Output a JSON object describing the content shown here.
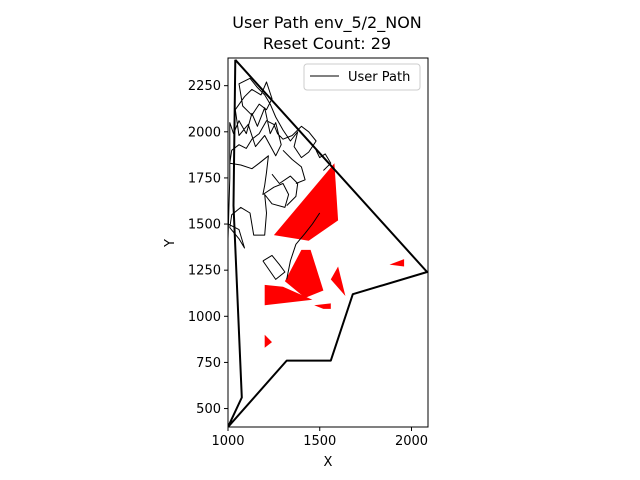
{
  "chart_data": {
    "type": "line",
    "title_line1": "User Path env_5/2_NON",
    "title_line2": "Reset Count: 29",
    "xlabel": "X",
    "ylabel": "Y",
    "xlim": [
      1000,
      2090
    ],
    "ylim": [
      400,
      2400
    ],
    "xticks": [
      1000,
      1500,
      2000
    ],
    "yticks": [
      500,
      750,
      1000,
      1250,
      1500,
      1750,
      2000,
      2250
    ],
    "legend": {
      "position": "top-right",
      "label": "User Path"
    },
    "colors": {
      "boundary": "#000000",
      "path": "#000000",
      "obstacle": "#ff0000"
    },
    "boundary": [
      [
        1040,
        2390
      ],
      [
        2085,
        1240
      ],
      [
        1680,
        1120
      ],
      [
        1560,
        760
      ],
      [
        1320,
        760
      ],
      [
        1000,
        400
      ],
      [
        1075,
        560
      ],
      [
        1030,
        1600
      ],
      [
        1040,
        2390
      ]
    ],
    "obstacles": [
      [
        [
          1250,
          1440
        ],
        [
          1580,
          1830
        ],
        [
          1600,
          1520
        ],
        [
          1440,
          1410
        ],
        [
          1250,
          1440
        ]
      ],
      [
        [
          1310,
          1190
        ],
        [
          1400,
          1360
        ],
        [
          1450,
          1360
        ],
        [
          1520,
          1140
        ],
        [
          1420,
          1100
        ],
        [
          1310,
          1190
        ]
      ],
      [
        [
          1200,
          1060
        ],
        [
          1200,
          1170
        ],
        [
          1300,
          1160
        ],
        [
          1460,
          1090
        ],
        [
          1200,
          1060
        ]
      ],
      [
        [
          1560,
          1200
        ],
        [
          1600,
          1270
        ],
        [
          1640,
          1110
        ],
        [
          1560,
          1200
        ]
      ],
      [
        [
          1470,
          1060
        ],
        [
          1520,
          1040
        ],
        [
          1560,
          1040
        ],
        [
          1560,
          1070
        ],
        [
          1470,
          1060
        ]
      ],
      [
        [
          1880,
          1280
        ],
        [
          1960,
          1310
        ],
        [
          1960,
          1270
        ],
        [
          1880,
          1280
        ]
      ],
      [
        [
          1200,
          830
        ],
        [
          1200,
          900
        ],
        [
          1240,
          860
        ],
        [
          1200,
          830
        ]
      ]
    ],
    "path": [
      [
        1000,
        1420
      ],
      [
        1010,
        1750
      ],
      [
        1010,
        2050
      ],
      [
        1030,
        1990
      ],
      [
        1060,
        2060
      ],
      [
        1100,
        1990
      ],
      [
        1130,
        2100
      ],
      [
        1160,
        2030
      ],
      [
        1200,
        2130
      ],
      [
        1230,
        1990
      ],
      [
        1260,
        2050
      ],
      [
        1290,
        1930
      ],
      [
        1260,
        1870
      ],
      [
        1200,
        1980
      ],
      [
        1150,
        1920
      ],
      [
        1110,
        2040
      ],
      [
        1060,
        1980
      ],
      [
        1040,
        2120
      ],
      [
        1090,
        2190
      ],
      [
        1130,
        2230
      ],
      [
        1180,
        2200
      ],
      [
        1210,
        2270
      ],
      [
        1240,
        2180
      ],
      [
        1210,
        2120
      ],
      [
        1170,
        2150
      ],
      [
        1130,
        2090
      ],
      [
        1080,
        2140
      ],
      [
        1060,
        2260
      ],
      [
        1120,
        2290
      ],
      [
        1160,
        2240
      ],
      [
        1200,
        2200
      ],
      [
        1230,
        2150
      ],
      [
        1260,
        2080
      ],
      [
        1300,
        2010
      ],
      [
        1340,
        1950
      ],
      [
        1380,
        2000
      ],
      [
        1360,
        1920
      ],
      [
        1400,
        1860
      ],
      [
        1440,
        1890
      ],
      [
        1480,
        1950
      ],
      [
        1440,
        2000
      ],
      [
        1400,
        2030
      ],
      [
        1350,
        1980
      ],
      [
        1300,
        1960
      ],
      [
        1270,
        1990
      ],
      [
        1250,
        2040
      ],
      [
        1210,
        2060
      ],
      [
        1170,
        1990
      ],
      [
        1130,
        1960
      ],
      [
        1100,
        1910
      ],
      [
        1060,
        1930
      ],
      [
        1020,
        1900
      ],
      [
        1010,
        1830
      ],
      [
        1070,
        1820
      ],
      [
        1130,
        1800
      ],
      [
        1170,
        1830
      ],
      [
        1220,
        1870
      ],
      [
        1210,
        1780
      ],
      [
        1200,
        1710
      ],
      [
        1190,
        1660
      ],
      [
        1250,
        1700
      ],
      [
        1300,
        1720
      ],
      [
        1330,
        1660
      ],
      [
        1310,
        1590
      ],
      [
        1240,
        1610
      ],
      [
        1200,
        1660
      ],
      [
        1210,
        1560
      ],
      [
        1200,
        1440
      ],
      [
        1140,
        1440
      ],
      [
        1120,
        1560
      ],
      [
        1070,
        1590
      ],
      [
        1020,
        1550
      ],
      [
        1010,
        1480
      ],
      [
        1060,
        1420
      ],
      [
        1090,
        1370
      ],
      [
        1060,
        1470
      ],
      [
        1000,
        1500
      ]
    ],
    "path_branches": [
      [
        [
          1190,
          1300
        ],
        [
          1240,
          1330
        ],
        [
          1280,
          1280
        ],
        [
          1310,
          1240
        ],
        [
          1260,
          1200
        ],
        [
          1190,
          1300
        ]
      ],
      [
        [
          1320,
          1200
        ],
        [
          1340,
          1300
        ],
        [
          1370,
          1390
        ],
        [
          1420,
          1450
        ],
        [
          1460,
          1500
        ],
        [
          1500,
          1560
        ]
      ],
      [
        [
          1240,
          1770
        ],
        [
          1280,
          1720
        ],
        [
          1340,
          1760
        ],
        [
          1380,
          1720
        ],
        [
          1370,
          1650
        ],
        [
          1320,
          1600
        ]
      ],
      [
        [
          1300,
          1900
        ],
        [
          1350,
          1850
        ],
        [
          1400,
          1810
        ],
        [
          1420,
          1740
        ],
        [
          1370,
          1720
        ]
      ],
      [
        [
          1480,
          1900
        ],
        [
          1500,
          1860
        ],
        [
          1530,
          1880
        ],
        [
          1560,
          1830
        ],
        [
          1520,
          1790
        ]
      ]
    ]
  }
}
